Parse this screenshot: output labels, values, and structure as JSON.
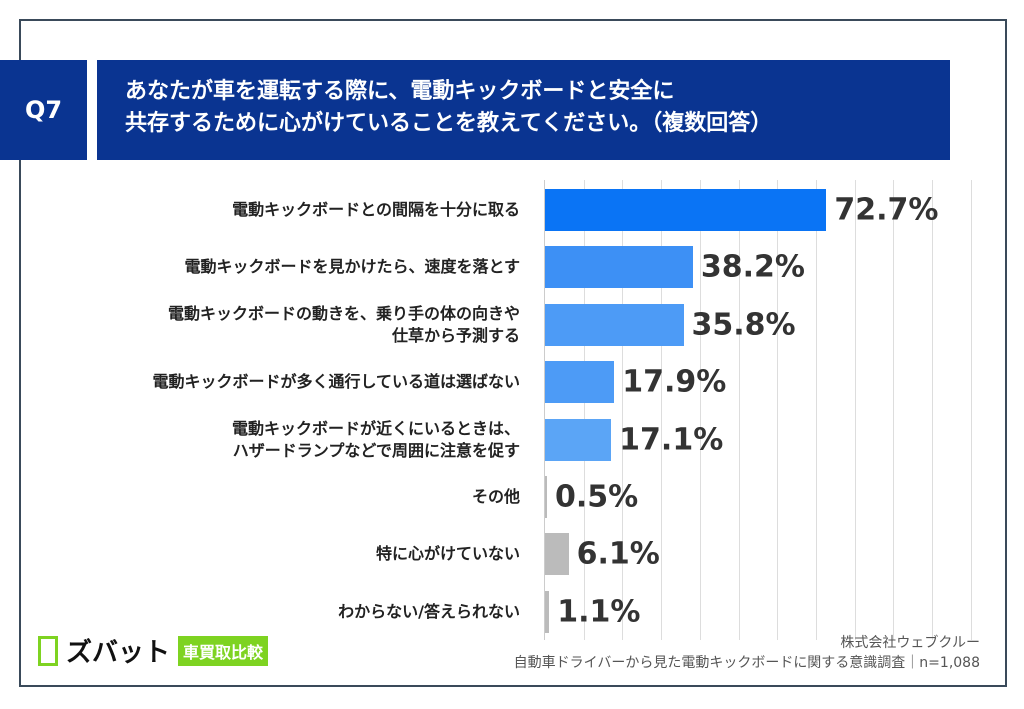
{
  "header": {
    "q": "Q7",
    "title_line1": "あなたが車を運転する際に、電動キックボードと安全に",
    "title_line2": "共存するために心がけていることを教えてください。（複数回答）"
  },
  "chart_data": {
    "type": "bar",
    "orientation": "horizontal",
    "title": "あなたが車を運転する際に、電動キックボードと安全に共存するために心がけていることを教えてください。（複数回答）",
    "categories": [
      [
        "電動キックボードとの間隔を十分に取る"
      ],
      [
        "電動キックボードを見かけたら、速度を落とす"
      ],
      [
        "電動キックボードの動きを、乗り手の体の向きや",
        "仕草から予測する"
      ],
      [
        "電動キックボードが多く通行している道は選ばない"
      ],
      [
        "電動キックボードが近くにいるときは、",
        "ハザードランプなどで周囲に注意を促す"
      ],
      [
        "その他"
      ],
      [
        "特に心がけていない"
      ],
      [
        "わからない/答えられない"
      ]
    ],
    "values": [
      72.7,
      38.2,
      35.8,
      17.9,
      17.1,
      0.5,
      6.1,
      1.1
    ],
    "labels": [
      "72.7%",
      "38.2%",
      "35.8%",
      "17.9%",
      "17.1%",
      "0.5%",
      "6.1%",
      "1.1%"
    ],
    "colors": [
      "#0a74f5",
      "#3d90f5",
      "#4d9bf6",
      "#4d9bf6",
      "#5ba5f6",
      "#bbbbbb",
      "#bbbbbb",
      "#bbbbbb"
    ],
    "xlim": [
      0,
      110
    ],
    "grid": true,
    "unit": "%"
  },
  "footer": {
    "logo": "ズバット",
    "logo_badge": "車買取比較",
    "company": "株式会社ウェブクルー",
    "source": "自動車ドライバーから見た電動キックボードに関する意識調査｜n=1,088"
  }
}
